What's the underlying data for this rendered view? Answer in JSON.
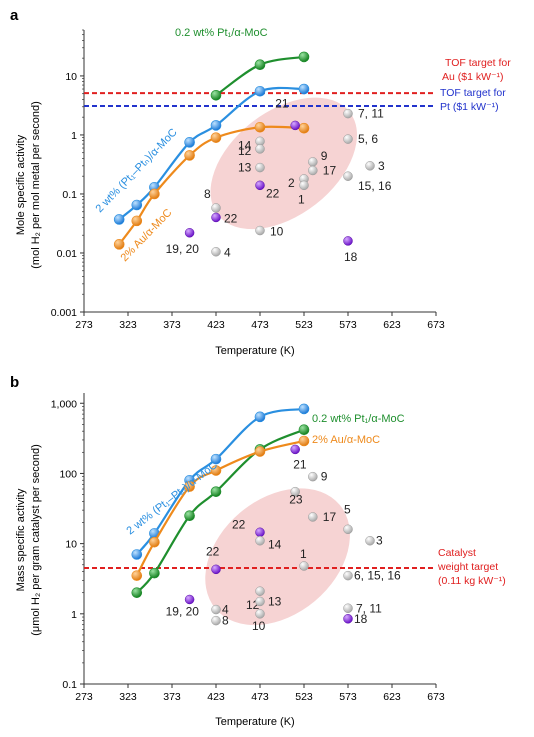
{
  "chart_data": [
    {
      "panel_label": "a",
      "type": "scatter",
      "xlabel": "Temperature (K)",
      "ylabel_line1": "Mole specific activity",
      "ylabel_line2": "(mol H₂ per mol metal per second)",
      "xlim": [
        273,
        673
      ],
      "xticks": [
        "273",
        "323",
        "373",
        "423",
        "473",
        "523",
        "573",
        "623",
        "673"
      ],
      "ylim": [
        0.001,
        60
      ],
      "yscale": "log",
      "yticks": [
        {
          "value": 0.001,
          "label": "0.001"
        },
        {
          "value": 0.01,
          "label": "0.01"
        },
        {
          "value": 0.1,
          "label": "0.1"
        },
        {
          "value": 1,
          "label": "1"
        },
        {
          "value": 10,
          "label": "10"
        }
      ],
      "series": [
        {
          "name": "0.2 wt% Pt₁/α-MoC",
          "color": "#1f8f2e",
          "x": [
            423,
            473,
            523
          ],
          "y": [
            4.7,
            15.5,
            21
          ]
        },
        {
          "name": "2 wt% (Pt₁–Ptₙ)/α-MoC",
          "color": "#2a8fe0",
          "x": [
            313,
            333,
            353,
            393,
            423,
            473,
            523
          ],
          "y": [
            0.037,
            0.065,
            0.13,
            0.75,
            1.45,
            5.5,
            6.0
          ]
        },
        {
          "name": "2% Au/α-MoC",
          "color": "#ee8a1c",
          "x": [
            313,
            333,
            353,
            393,
            423,
            473,
            523
          ],
          "y": [
            0.014,
            0.035,
            0.1,
            0.45,
            0.9,
            1.35,
            1.3
          ]
        }
      ],
      "reference_points": [
        {
          "label": "21",
          "x": 513,
          "y": 1.45,
          "kind": "purple"
        },
        {
          "label": "7, 11",
          "x": 573,
          "y": 2.3,
          "kind": "gray"
        },
        {
          "label": "5, 6",
          "x": 573,
          "y": 0.85,
          "kind": "gray"
        },
        {
          "label": "14",
          "x": 473,
          "y": 0.78,
          "kind": "gray"
        },
        {
          "label": "12",
          "x": 473,
          "y": 0.58,
          "kind": "gray"
        },
        {
          "label": "9",
          "x": 533,
          "y": 0.35,
          "kind": "gray"
        },
        {
          "label": "17",
          "x": 533,
          "y": 0.25,
          "kind": "gray"
        },
        {
          "label": "3",
          "x": 598,
          "y": 0.3,
          "kind": "gray"
        },
        {
          "label": "13",
          "x": 473,
          "y": 0.28,
          "kind": "gray"
        },
        {
          "label": "2",
          "x": 523,
          "y": 0.18,
          "kind": "gray"
        },
        {
          "label": "1",
          "x": 523,
          "y": 0.14,
          "kind": "gray"
        },
        {
          "label": "15, 16",
          "x": 573,
          "y": 0.2,
          "kind": "gray"
        },
        {
          "label": "22",
          "x": 473,
          "y": 0.14,
          "kind": "purple"
        },
        {
          "label": "8",
          "x": 423,
          "y": 0.058,
          "kind": "gray"
        },
        {
          "label": "22",
          "x": 423,
          "y": 0.04,
          "kind": "purple"
        },
        {
          "label": "10",
          "x": 473,
          "y": 0.024,
          "kind": "gray"
        },
        {
          "label": "19, 20",
          "x": 393,
          "y": 0.022,
          "kind": "purple"
        },
        {
          "label": "4",
          "x": 423,
          "y": 0.0105,
          "kind": "gray"
        },
        {
          "label": "18",
          "x": 573,
          "y": 0.016,
          "kind": "purple"
        }
      ],
      "target_lines": [
        {
          "value": 5.1,
          "color": "#e02020",
          "line1": "TOF target for",
          "line2": "Au ($1 kW⁻¹)"
        },
        {
          "value": 3.1,
          "color": "#2233cc",
          "line1": "TOF target for",
          "line2": "Pt ($1 kW⁻¹)"
        }
      ],
      "region": {
        "cx": 500,
        "cy": 0.33,
        "rx": 95,
        "ry_decades": 1.6,
        "angle": -38
      }
    },
    {
      "panel_label": "b",
      "type": "scatter",
      "xlabel": "Temperature (K)",
      "ylabel_line1": "Mass specific activity",
      "ylabel_line2": "(μmol H₂ per gram catalyst per second)",
      "xlim": [
        273,
        673
      ],
      "xticks": [
        "273",
        "323",
        "373",
        "423",
        "473",
        "523",
        "573",
        "623",
        "673"
      ],
      "ylim": [
        0.1,
        1400
      ],
      "yscale": "log",
      "yticks": [
        {
          "value": 0.1,
          "label": "0.1"
        },
        {
          "value": 1,
          "label": "1"
        },
        {
          "value": 10,
          "label": "10"
        },
        {
          "value": 100,
          "label": "100"
        },
        {
          "value": 1000,
          "label": "1,000"
        }
      ],
      "series": [
        {
          "name": "2 wt% (Pt₁–Ptₙ)/α-MoC",
          "color": "#2a8fe0",
          "x": [
            333,
            353,
            393,
            423,
            473,
            523
          ],
          "y": [
            7,
            14,
            80,
            160,
            640,
            830
          ]
        },
        {
          "name": "0.2 wt% Pt₁/α-MoC",
          "color": "#1f8f2e",
          "x": [
            333,
            353,
            393,
            423,
            473,
            523
          ],
          "y": [
            2,
            3.8,
            25,
            55,
            220,
            420
          ]
        },
        {
          "name": "2% Au/α-MoC",
          "color": "#ee8a1c",
          "x": [
            333,
            353,
            393,
            423,
            473,
            523
          ],
          "y": [
            3.5,
            10.5,
            65,
            110,
            205,
            290
          ]
        }
      ],
      "reference_points": [
        {
          "label": "21",
          "x": 513,
          "y": 220,
          "kind": "purple"
        },
        {
          "label": "9",
          "x": 533,
          "y": 90,
          "kind": "gray"
        },
        {
          "label": "23",
          "x": 513,
          "y": 55,
          "kind": "gray"
        },
        {
          "label": "17",
          "x": 533,
          "y": 24,
          "kind": "gray"
        },
        {
          "label": "5",
          "x": 573,
          "y": 16,
          "kind": "gray"
        },
        {
          "label": "3",
          "x": 598,
          "y": 11,
          "kind": "gray"
        },
        {
          "label": "22",
          "x": 473,
          "y": 14.5,
          "kind": "purple"
        },
        {
          "label": "14",
          "x": 473,
          "y": 11,
          "kind": "gray"
        },
        {
          "label": "22",
          "x": 423,
          "y": 4.3,
          "kind": "purple"
        },
        {
          "label": "1",
          "x": 523,
          "y": 4.8,
          "kind": "gray"
        },
        {
          "label": "6, 15, 16",
          "x": 573,
          "y": 3.5,
          "kind": "gray"
        },
        {
          "label": "12",
          "x": 473,
          "y": 2.1,
          "kind": "gray"
        },
        {
          "label": "13",
          "x": 473,
          "y": 1.5,
          "kind": "gray"
        },
        {
          "label": "10",
          "x": 473,
          "y": 1.0,
          "kind": "gray"
        },
        {
          "label": "19, 20",
          "x": 393,
          "y": 1.6,
          "kind": "purple"
        },
        {
          "label": "4",
          "x": 423,
          "y": 1.15,
          "kind": "gray"
        },
        {
          "label": "8",
          "x": 423,
          "y": 0.8,
          "kind": "gray"
        },
        {
          "label": "7, 11",
          "x": 573,
          "y": 1.2,
          "kind": "gray"
        },
        {
          "label": "18",
          "x": 573,
          "y": 0.85,
          "kind": "purple"
        }
      ],
      "target_lines": [
        {
          "value": 4.5,
          "color": "#e02020",
          "line1": "Catalyst",
          "line2": "weight target",
          "line3": "(0.11 kg kW⁻¹)"
        }
      ],
      "region": {
        "cx": 493,
        "cy": 6.5,
        "rx": 92,
        "ry_decades": 1.5,
        "angle": -40
      }
    }
  ],
  "colors": {
    "gray_marker": "#c8c8c8",
    "purple_marker": "#7b1fd6",
    "region_fill": "#f6d3d3"
  }
}
